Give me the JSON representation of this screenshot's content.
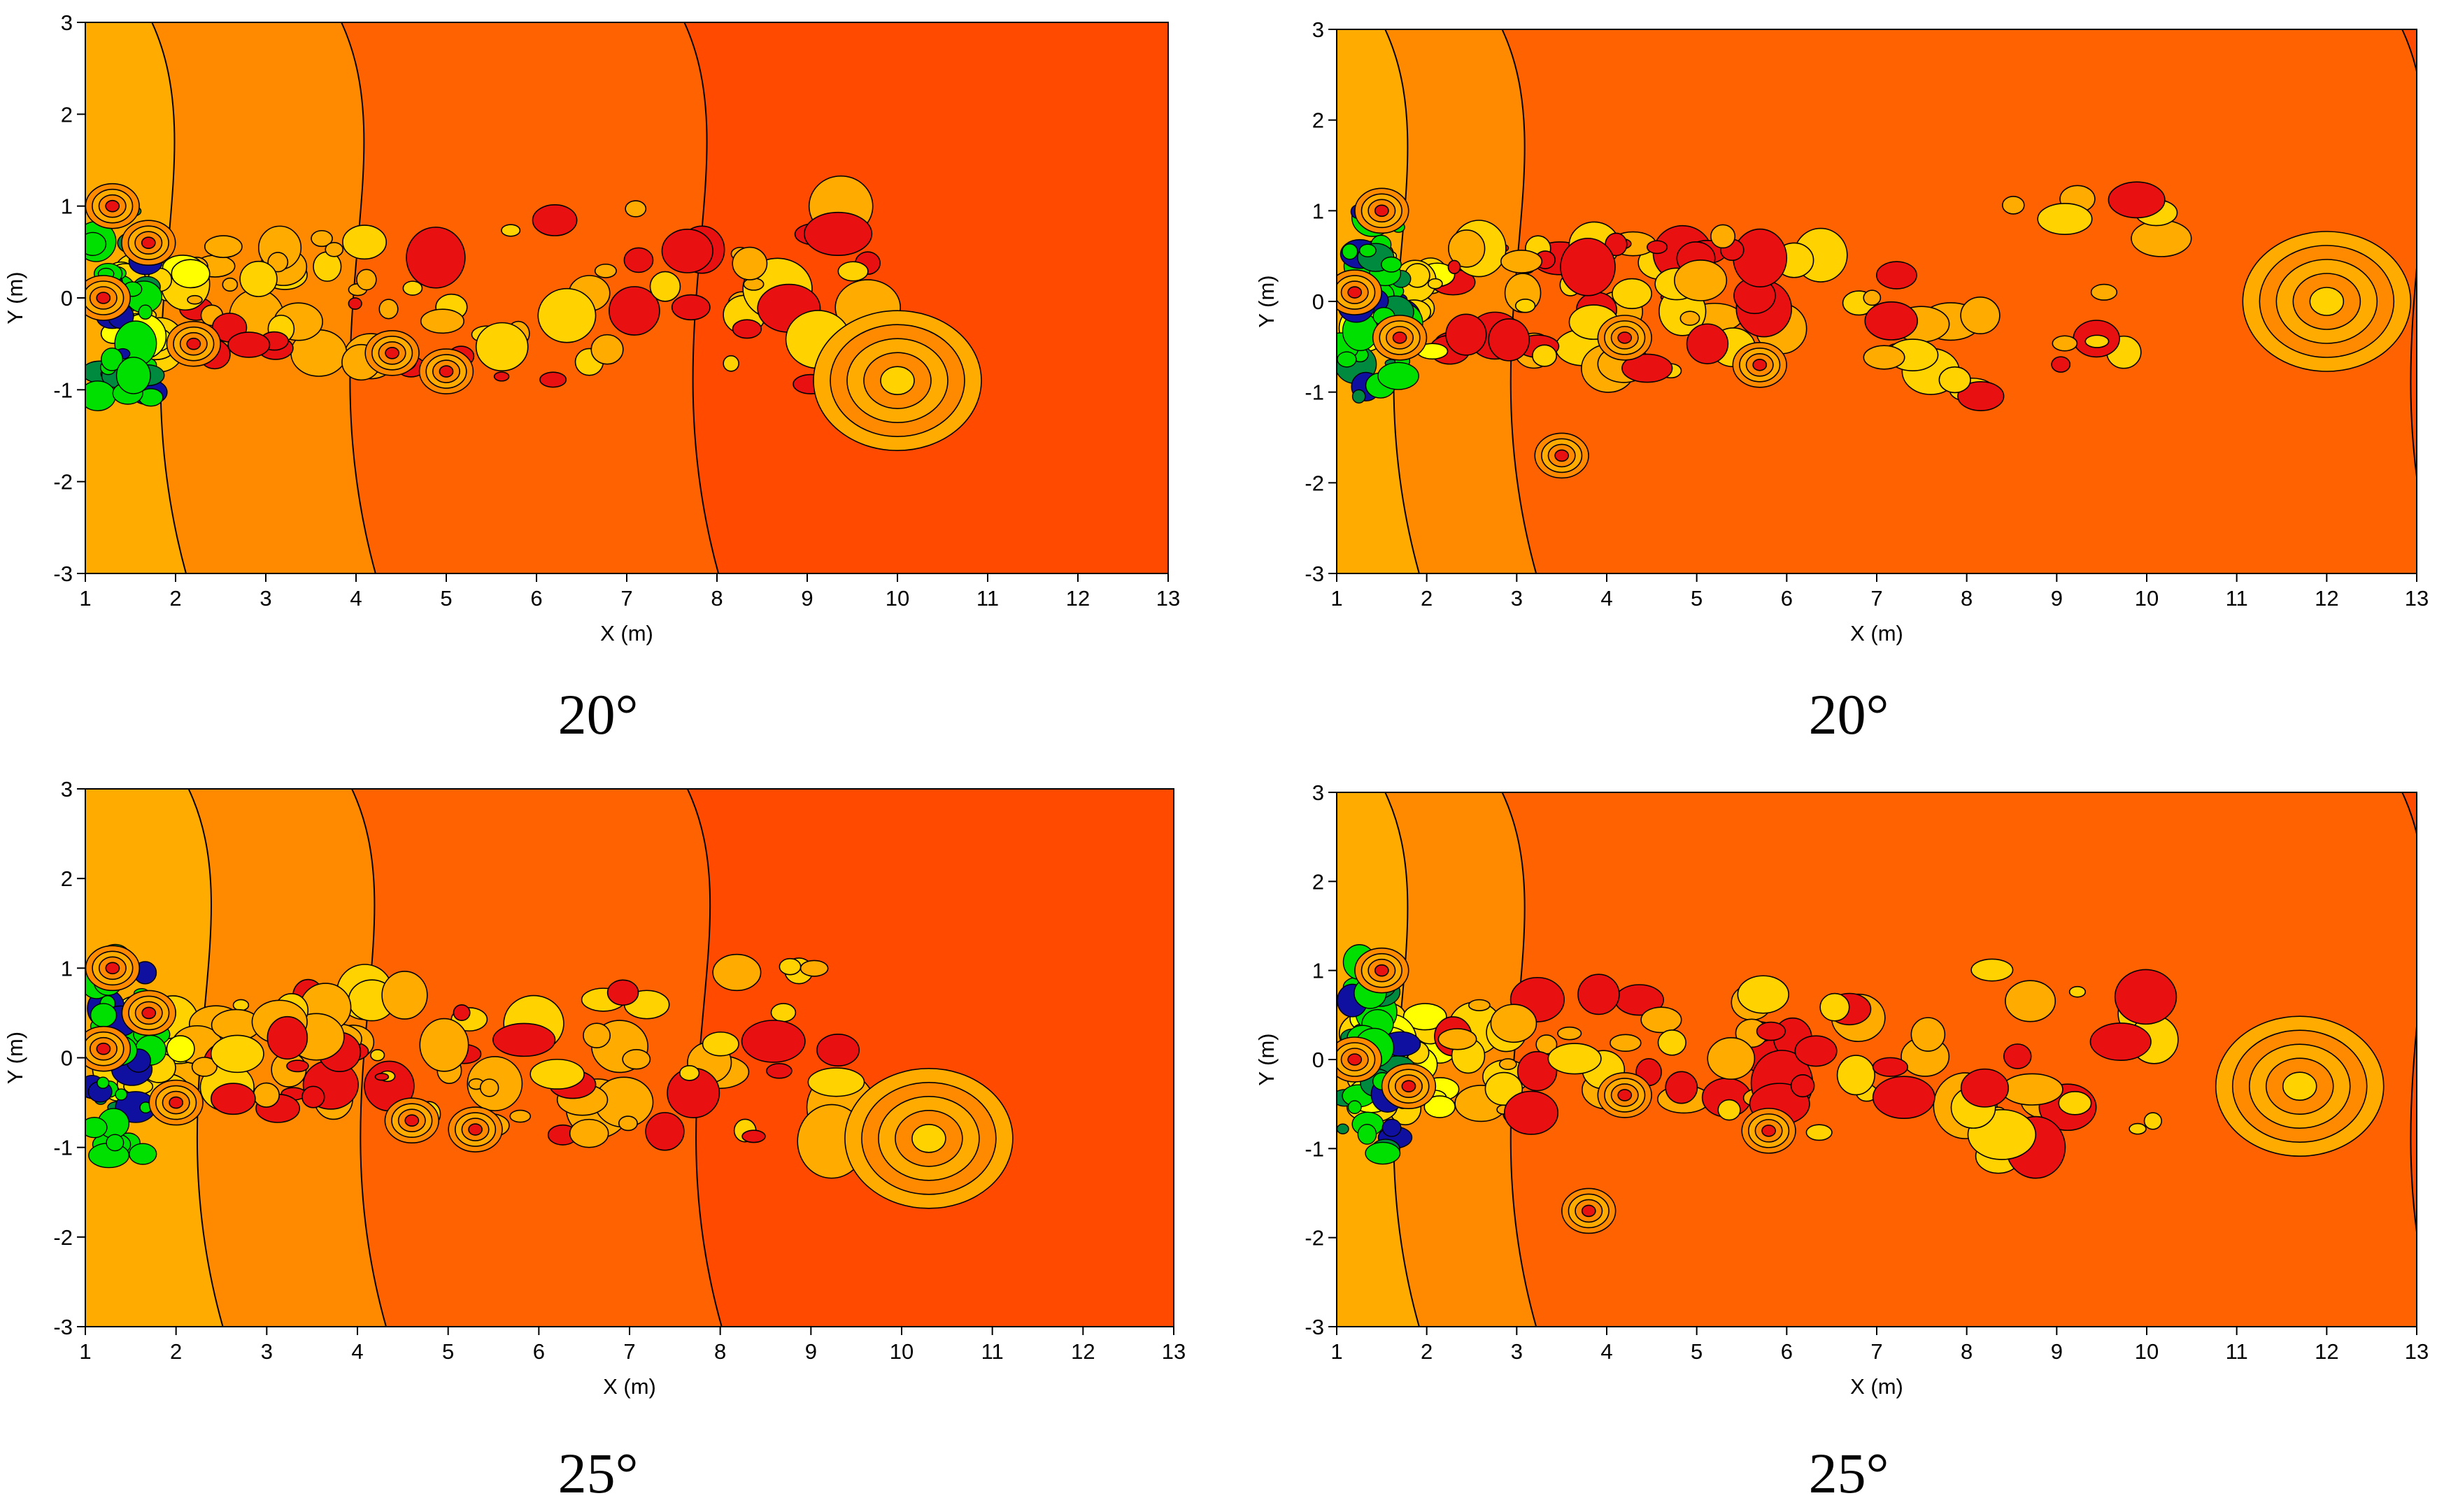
{
  "colors": {
    "far_field": "#ff4a00",
    "field": "#ff6200",
    "mid": "#ff8a00",
    "near": "#ffab00",
    "light": "#ffd200",
    "yellow": "#ffff00",
    "green": "#00e000",
    "dark_green": "#008a40",
    "blue": "#1010a0",
    "red": "#e81010",
    "contour": "#000000"
  },
  "chart_data": [
    {
      "type": "contour",
      "xlabel": "X (m)",
      "ylabel": "Y (m)",
      "xlim": [
        1,
        13
      ],
      "ylim": [
        -3,
        3
      ],
      "xticks": [
        "1",
        "2",
        "3",
        "4",
        "5",
        "6",
        "7",
        "8",
        "9",
        "10",
        "11",
        "12",
        "13"
      ],
      "yticks": [
        "-3",
        "-2",
        "-1",
        "0",
        "1",
        "2",
        "3"
      ],
      "caption": "20°",
      "region_boundaries": {
        "near": 1.9,
        "mid": 4.0,
        "field": 7.8
      },
      "vortex_centers": [
        [
          1.2,
          0.0
        ],
        [
          1.3,
          1.0
        ],
        [
          1.7,
          0.6
        ],
        [
          2.2,
          -0.5
        ],
        [
          4.4,
          -0.6
        ],
        [
          5.0,
          -0.8
        ],
        [
          10.0,
          -0.9
        ]
      ]
    },
    {
      "type": "contour",
      "xlabel": "X (m)",
      "ylabel": "Y (m)",
      "xlim": [
        1,
        13
      ],
      "ylim": [
        -3,
        3
      ],
      "xticks": [
        "1",
        "2",
        "3",
        "4",
        "5",
        "6",
        "7",
        "8",
        "9",
        "10",
        "11",
        "12",
        "13"
      ],
      "yticks": [
        "-3",
        "-2",
        "-1",
        "0",
        "1",
        "2",
        "3"
      ],
      "caption": "20°",
      "region_boundaries": {
        "near": 1.7,
        "mid": 3.0,
        "field": 13.0
      },
      "vortex_centers": [
        [
          1.2,
          0.1
        ],
        [
          1.5,
          1.0
        ],
        [
          1.7,
          -0.4
        ],
        [
          3.5,
          -1.7
        ],
        [
          4.2,
          -0.4
        ],
        [
          5.7,
          -0.7
        ],
        [
          12.0,
          0.0
        ]
      ]
    },
    {
      "type": "contour",
      "xlabel": "X (m)",
      "ylabel": "Y (m)",
      "xlim": [
        1,
        13
      ],
      "ylim": [
        -3,
        3
      ],
      "xticks": [
        "1",
        "2",
        "3",
        "4",
        "5",
        "6",
        "7",
        "8",
        "9",
        "10",
        "11",
        "12",
        "13"
      ],
      "yticks": [
        "-3",
        "-2",
        "-1",
        "0",
        "1",
        "2",
        "3"
      ],
      "caption": "25°",
      "region_boundaries": {
        "near": 2.3,
        "mid": 4.1,
        "field": 7.8
      },
      "vortex_centers": [
        [
          1.2,
          0.1
        ],
        [
          1.3,
          1.0
        ],
        [
          1.7,
          0.5
        ],
        [
          2.0,
          -0.5
        ],
        [
          4.6,
          -0.7
        ],
        [
          5.3,
          -0.8
        ],
        [
          10.3,
          -0.9
        ]
      ]
    },
    {
      "type": "contour",
      "xlabel": "X (m)",
      "ylabel": "Y (m)",
      "xlim": [
        1,
        13
      ],
      "ylim": [
        -3,
        3
      ],
      "xticks": [
        "1",
        "2",
        "3",
        "4",
        "5",
        "6",
        "7",
        "8",
        "9",
        "10",
        "11",
        "12",
        "13"
      ],
      "yticks": [
        "-3",
        "-2",
        "-1",
        "0",
        "1",
        "2",
        "3"
      ],
      "caption": "25°",
      "region_boundaries": {
        "near": 1.7,
        "mid": 3.0,
        "field": 13.0
      },
      "vortex_centers": [
        [
          1.2,
          0.0
        ],
        [
          1.5,
          1.0
        ],
        [
          1.8,
          -0.3
        ],
        [
          3.8,
          -1.7
        ],
        [
          4.2,
          -0.4
        ],
        [
          5.8,
          -0.8
        ],
        [
          11.7,
          -0.3
        ]
      ]
    }
  ]
}
